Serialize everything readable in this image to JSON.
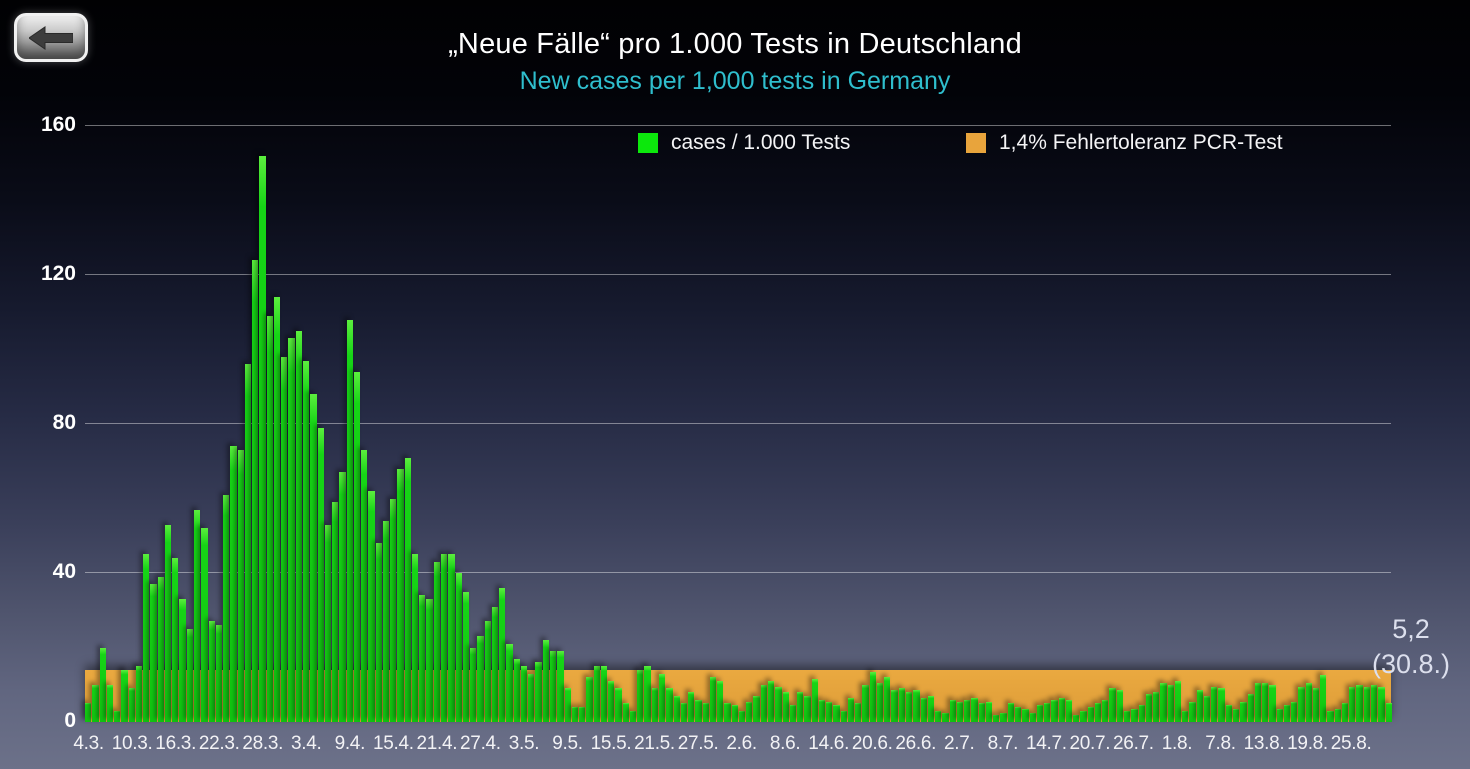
{
  "header": {
    "title": "„Neue Fälle“ pro 1.000 Tests in Deutschland",
    "subtitle": "New cases per 1,000 tests in Germany",
    "subtitle_color": "#2fbecd"
  },
  "back_button": {
    "icon": "left-arrow-icon"
  },
  "legend": {
    "items": [
      {
        "label": "cases / 1.000 Tests",
        "color": "#0ce80c"
      },
      {
        "label": "1,4% Fehlertoleranz PCR-Test",
        "color": "#e8a43c"
      }
    ]
  },
  "annotation": {
    "value_label": "5,2",
    "date_label": "(30.8.)"
  },
  "chart_data": {
    "type": "bar",
    "title": "„Neue Fälle“ pro 1.000 Tests in Deutschland",
    "subtitle": "New cases per 1,000 tests in Germany",
    "xlabel": "",
    "ylabel": "",
    "ylim": [
      0,
      160
    ],
    "y_ticks": [
      0,
      40,
      80,
      120,
      160
    ],
    "grid": true,
    "legend_position": "top",
    "bar_color": "#15d115",
    "band": {
      "label": "1,4% Fehlertoleranz PCR-Test",
      "value": 14,
      "color": "#e5a33d",
      "note": "horizontal tolerance band from 0 to 14 cases per 1,000 tests"
    },
    "x_tick_labels": [
      "4.3.",
      "10.3.",
      "16.3.",
      "22.3.",
      "28.3.",
      "3.4.",
      "9.4.",
      "15.4.",
      "21.4.",
      "27.4.",
      "3.5.",
      "9.5.",
      "15.5.",
      "21.5.",
      "27.5.",
      "2.6.",
      "8.6.",
      "14.6.",
      "20.6.",
      "26.6.",
      "2.7.",
      "8.7.",
      "14.7.",
      "20.7.",
      "26.7.",
      "1.8.",
      "7.8.",
      "13.8.",
      "19.8.",
      "25.8."
    ],
    "tick_interval_days": 6,
    "series": [
      {
        "name": "cases / 1.000 Tests",
        "dates": [
          "4.3.",
          "5.3.",
          "6.3.",
          "7.3.",
          "8.3.",
          "9.3.",
          "10.3.",
          "11.3.",
          "12.3.",
          "13.3.",
          "14.3.",
          "15.3.",
          "16.3.",
          "17.3.",
          "18.3.",
          "19.3.",
          "20.3.",
          "21.3.",
          "22.3.",
          "23.3.",
          "24.3.",
          "25.3.",
          "26.3.",
          "27.3.",
          "28.3.",
          "29.3.",
          "30.3.",
          "31.3.",
          "1.4.",
          "2.4.",
          "3.4.",
          "4.4.",
          "5.4.",
          "6.4.",
          "7.4.",
          "8.4.",
          "9.4.",
          "10.4.",
          "11.4.",
          "12.4.",
          "13.4.",
          "14.4.",
          "15.4.",
          "16.4.",
          "17.4.",
          "18.4.",
          "19.4.",
          "20.4.",
          "21.4.",
          "22.4.",
          "23.4.",
          "24.4.",
          "25.4.",
          "26.4.",
          "27.4.",
          "28.4.",
          "29.4.",
          "30.4.",
          "1.5.",
          "2.5.",
          "3.5.",
          "4.5.",
          "5.5.",
          "6.5.",
          "7.5.",
          "8.5.",
          "9.5.",
          "10.5.",
          "11.5.",
          "12.5.",
          "13.5.",
          "14.5.",
          "15.5.",
          "16.5.",
          "17.5.",
          "18.5.",
          "19.5.",
          "20.5.",
          "21.5.",
          "22.5.",
          "23.5.",
          "24.5.",
          "25.5.",
          "26.5.",
          "27.5.",
          "28.5.",
          "29.5.",
          "30.5.",
          "31.5.",
          "1.6.",
          "2.6.",
          "3.6.",
          "4.6.",
          "5.6.",
          "6.6.",
          "7.6.",
          "8.6.",
          "9.6.",
          "10.6.",
          "11.6.",
          "12.6.",
          "13.6.",
          "14.6.",
          "15.6.",
          "16.6.",
          "17.6.",
          "18.6.",
          "19.6.",
          "20.6.",
          "21.6.",
          "22.6.",
          "23.6.",
          "24.6.",
          "25.6.",
          "26.6.",
          "27.6.",
          "28.6.",
          "29.6.",
          "30.6.",
          "1.7.",
          "2.7.",
          "3.7.",
          "4.7.",
          "5.7.",
          "6.7.",
          "7.7.",
          "8.7.",
          "9.7.",
          "10.7.",
          "11.7.",
          "12.7.",
          "13.7.",
          "14.7.",
          "15.7.",
          "16.7.",
          "17.7.",
          "18.7.",
          "19.7.",
          "20.7.",
          "21.7.",
          "22.7.",
          "23.7.",
          "24.7.",
          "25.7.",
          "26.7.",
          "27.7.",
          "28.7.",
          "29.7.",
          "30.7.",
          "31.7.",
          "1.8.",
          "2.8.",
          "3.8.",
          "4.8.",
          "5.8.",
          "6.8.",
          "7.8.",
          "8.8.",
          "9.8.",
          "10.8.",
          "11.8.",
          "12.8.",
          "13.8.",
          "14.8.",
          "15.8.",
          "16.8.",
          "17.8.",
          "18.8.",
          "19.8.",
          "20.8.",
          "21.8.",
          "22.8.",
          "23.8.",
          "24.8.",
          "25.8.",
          "26.8.",
          "27.8.",
          "28.8.",
          "29.8.",
          "30.8."
        ],
        "values": [
          5,
          10,
          20,
          10,
          3,
          14,
          9,
          15,
          45,
          37,
          39,
          53,
          44,
          33,
          25,
          57,
          52,
          27,
          26,
          61,
          74,
          73,
          96,
          124,
          152,
          109,
          114,
          98,
          103,
          105,
          97,
          88,
          79,
          53,
          59,
          67,
          108,
          94,
          73,
          62,
          48,
          54,
          60,
          68,
          71,
          45,
          34,
          33,
          43,
          45,
          45,
          40,
          35,
          20,
          23,
          27,
          31,
          36,
          21,
          17,
          15,
          13,
          16,
          22,
          19,
          19,
          9,
          4,
          4,
          12,
          15,
          15,
          11,
          9,
          5,
          3,
          14,
          15,
          9,
          13,
          9,
          7,
          5,
          8,
          6,
          5,
          12,
          11,
          5,
          4.5,
          3,
          5.5,
          7,
          10,
          11,
          9.5,
          8,
          4.5,
          8,
          7,
          11.5,
          6,
          5.5,
          4.5,
          3,
          6.5,
          5,
          10,
          13.5,
          10.5,
          12,
          8.5,
          9,
          8,
          8.5,
          6.5,
          7,
          3,
          2.5,
          6,
          5.5,
          6,
          6.5,
          5,
          5.5,
          2,
          2.5,
          5,
          4,
          3.5,
          2.5,
          4.5,
          5,
          6,
          6.5,
          6,
          2,
          3,
          4,
          5,
          6,
          9,
          8.5,
          3,
          3.5,
          4.5,
          7.5,
          8,
          10.5,
          10,
          11,
          3,
          5.5,
          8.5,
          7,
          9.5,
          9,
          4.5,
          3.5,
          5.5,
          7.5,
          10.5,
          10.5,
          10,
          3.5,
          4.5,
          5.5,
          9.5,
          10.5,
          9,
          12.5,
          3,
          3.5,
          5,
          9.5,
          10,
          9.5,
          10,
          9.5,
          5.2
        ]
      }
    ],
    "annotations": [
      {
        "text": "5,2",
        "sub_text": "(30.8.)",
        "target_date": "30.8.",
        "position": "right-of-plot"
      }
    ]
  }
}
